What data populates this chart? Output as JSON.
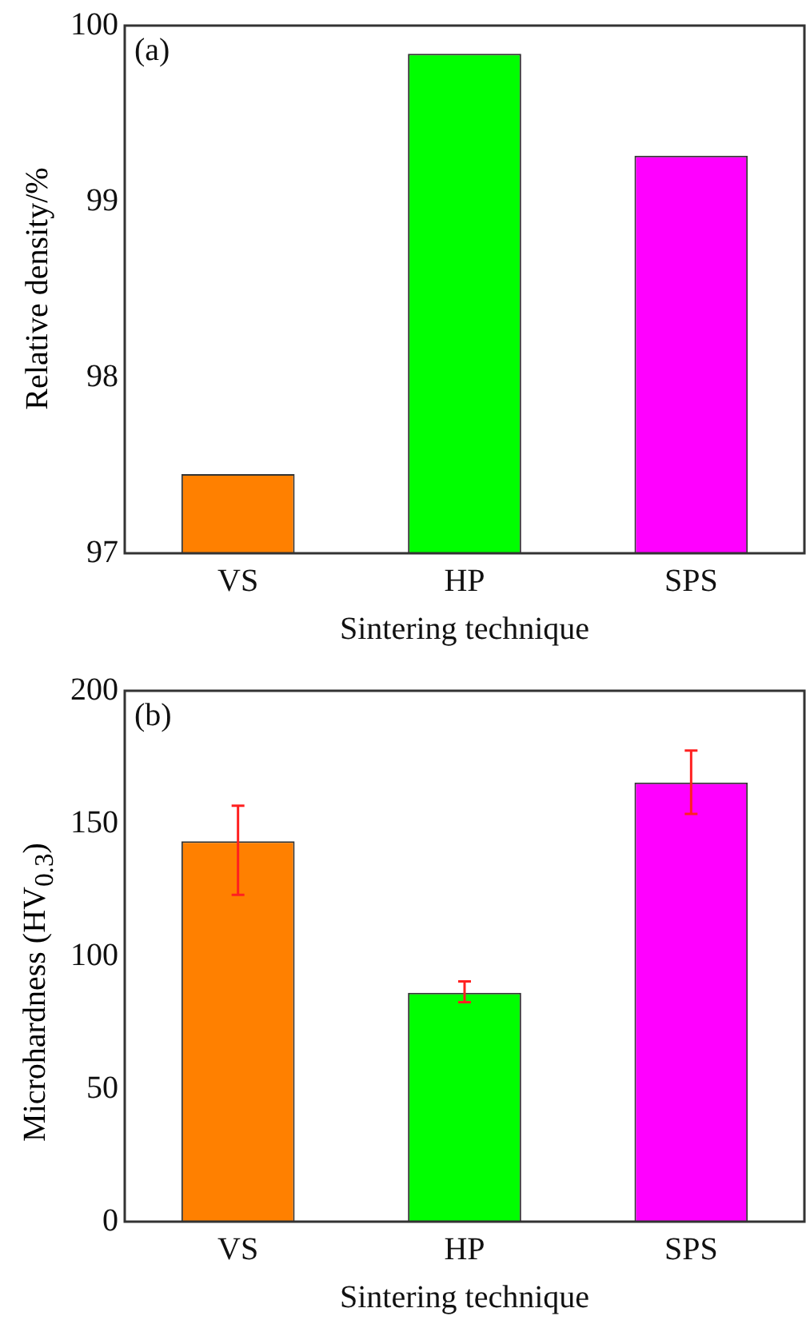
{
  "chart_data": [
    {
      "type": "bar",
      "categories": [
        "VS",
        "HP",
        "SPS"
      ],
      "values": [
        97.45,
        99.84,
        99.26
      ],
      "colors": [
        "#ff8000",
        "#00ff00",
        "#ff00ff"
      ],
      "xlabel": "Sintering technique",
      "ylabel": "Relative density/%",
      "ylim": [
        97,
        100
      ],
      "yticks": [
        97,
        98,
        99,
        100
      ],
      "grid": false,
      "legend": false,
      "annotations": [
        "(a)"
      ]
    },
    {
      "type": "bar",
      "categories": [
        "VS",
        "HP",
        "SPS"
      ],
      "values": [
        143.3,
        86.2,
        165.4
      ],
      "errors": [
        [
          123.1,
          156.7
        ],
        [
          82.7,
          90.5
        ],
        [
          153.6,
          177.5
        ]
      ],
      "colors": [
        "#ff8000",
        "#00ff00",
        "#ff00ff"
      ],
      "xlabel": "Sintering technique",
      "ylabel": "Microhardness (HV$_{0.3}$)",
      "ylim": [
        0,
        200
      ],
      "yticks": [
        0,
        50,
        100,
        150,
        200
      ],
      "grid": false,
      "legend": false,
      "annotations": [
        "(b)"
      ]
    }
  ]
}
